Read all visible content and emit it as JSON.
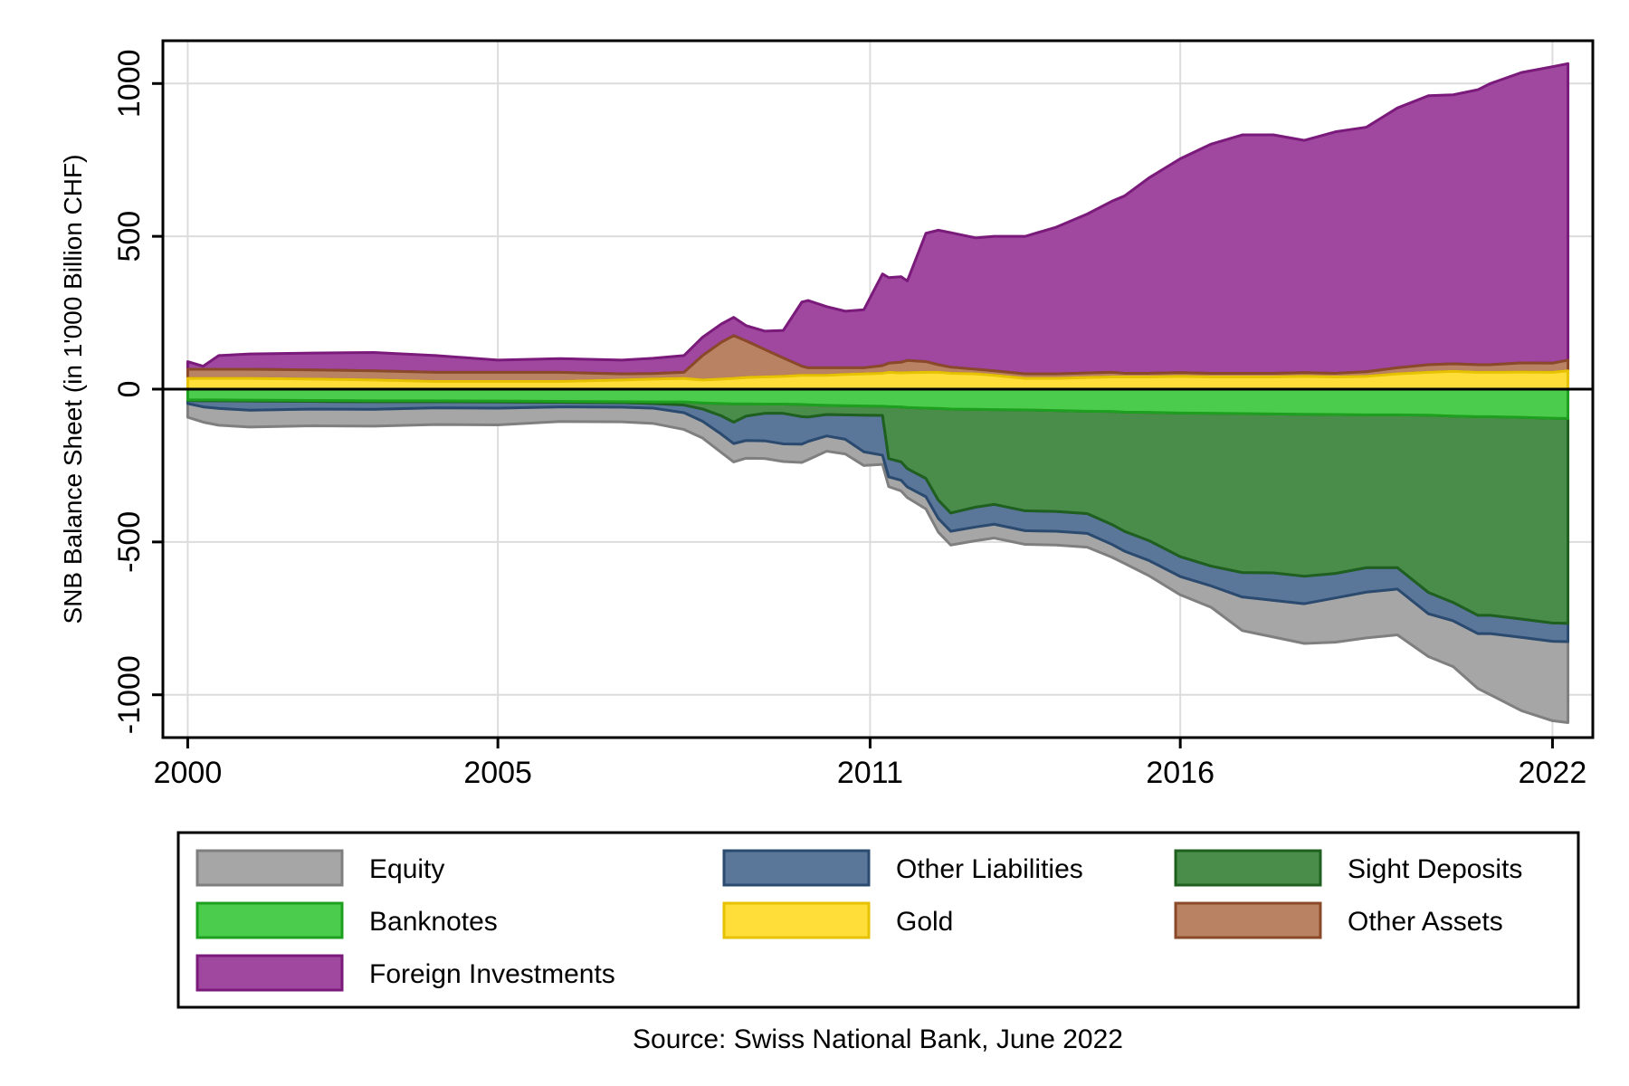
{
  "chart_data": {
    "type": "area",
    "title": "",
    "xlabel": "",
    "ylabel": "SNB Balance Sheet (in 1'000 Billion CHF)",
    "source": "Source: Swiss National Bank, June 2022",
    "x_tick_labels": [
      "2000",
      "2005",
      "2011",
      "2016",
      "2022"
    ],
    "y_tick_labels": [
      "-1000",
      "-500",
      "0",
      "500",
      "1000"
    ],
    "y_ticks": [
      -1000,
      -500,
      0,
      500,
      1000
    ],
    "x_tick_years": [
      2000,
      2005,
      2011,
      2016,
      2022
    ],
    "ylim": [
      -1140,
      1140
    ],
    "xlim": [
      1999.6,
      2022.65
    ],
    "grid": true,
    "legend_position": "bottom",
    "x": [
      2000.0,
      2000.25,
      2000.5,
      2001,
      2002,
      2003,
      2004,
      2005,
      2006,
      2007,
      2007.5,
      2008,
      2008.3,
      2008.6,
      2008.8,
      2009,
      2009.3,
      2009.6,
      2009.9,
      2010,
      2010.3,
      2010.6,
      2010.9,
      2011.2,
      2011.3,
      2011.5,
      2011.6,
      2011.9,
      2012.1,
      2012.3,
      2012.7,
      2013,
      2013.5,
      2014,
      2014.5,
      2014.9,
      2015.1,
      2015.5,
      2016,
      2016.5,
      2017,
      2017.5,
      2018,
      2018.5,
      2019,
      2019.5,
      2020,
      2020.4,
      2020.8,
      2021,
      2021.5,
      2022,
      2022.25
    ],
    "series": [
      {
        "name": "Equity",
        "side": "liability",
        "color": "#a6a6a6",
        "stroke": "#7f7f7f",
        "values": [
          45,
          50,
          55,
          55,
          55,
          55,
          55,
          55,
          48,
          48,
          50,
          55,
          55,
          60,
          60,
          58,
          58,
          58,
          60,
          60,
          50,
          48,
          45,
          30,
          32,
          35,
          35,
          40,
          45,
          45,
          45,
          45,
          45,
          45,
          45,
          42,
          40,
          50,
          60,
          70,
          110,
          120,
          130,
          145,
          150,
          150,
          140,
          150,
          180,
          200,
          240,
          260,
          265
        ]
      },
      {
        "name": "Other Liabilities",
        "side": "liability",
        "color": "#5a7799",
        "stroke": "#2b4a6f",
        "values": [
          10,
          20,
          25,
          30,
          25,
          25,
          20,
          20,
          15,
          15,
          15,
          25,
          40,
          60,
          70,
          80,
          90,
          100,
          90,
          80,
          70,
          80,
          120,
          130,
          60,
          60,
          60,
          60,
          60,
          60,
          65,
          65,
          65,
          65,
          65,
          65,
          65,
          65,
          65,
          65,
          80,
          90,
          90,
          80,
          80,
          70,
          70,
          60,
          60,
          60,
          60,
          60,
          60
        ]
      },
      {
        "name": "Sight Deposits",
        "side": "liability",
        "color": "#4a8c4a",
        "stroke": "#1f5f1f",
        "values": [
          2,
          3,
          3,
          3,
          3,
          3,
          3,
          3,
          3,
          3,
          5,
          10,
          20,
          40,
          60,
          40,
          30,
          30,
          40,
          40,
          30,
          30,
          30,
          30,
          170,
          180,
          200,
          230,
          300,
          340,
          320,
          310,
          330,
          330,
          335,
          370,
          390,
          420,
          470,
          500,
          520,
          520,
          530,
          520,
          500,
          500,
          580,
          610,
          650,
          650,
          660,
          670,
          670
        ]
      },
      {
        "name": "Banknotes",
        "side": "liability",
        "color": "#4ccc4c",
        "stroke": "#1f9f1f",
        "values": [
          35,
          35,
          35,
          36,
          37,
          38,
          38,
          39,
          40,
          41,
          42,
          42,
          45,
          47,
          48,
          48,
          49,
          49,
          50,
          51,
          53,
          54,
          55,
          56,
          57,
          58,
          60,
          62,
          63,
          65,
          66,
          67,
          68,
          70,
          72,
          73,
          75,
          76,
          78,
          79,
          80,
          81,
          82,
          83,
          84,
          84,
          85,
          88,
          90,
          90,
          92,
          95,
          96
        ]
      },
      {
        "name": "Gold",
        "side": "asset",
        "color": "#ffde3a",
        "stroke": "#e6c200",
        "values": [
          35,
          35,
          35,
          35,
          33,
          30,
          25,
          25,
          25,
          30,
          33,
          35,
          30,
          33,
          35,
          38,
          40,
          42,
          45,
          45,
          45,
          48,
          50,
          52,
          55,
          53,
          54,
          55,
          55,
          52,
          50,
          45,
          35,
          35,
          38,
          40,
          40,
          40,
          42,
          40,
          40,
          40,
          42,
          40,
          42,
          50,
          55,
          58,
          55,
          55,
          56,
          55,
          60
        ]
      },
      {
        "name": "Other Assets",
        "side": "asset",
        "color": "#b98363",
        "stroke": "#8a4a2a",
        "values": [
          30,
          30,
          30,
          30,
          30,
          30,
          30,
          30,
          30,
          20,
          18,
          20,
          80,
          120,
          140,
          120,
          90,
          60,
          30,
          25,
          25,
          22,
          20,
          25,
          30,
          35,
          40,
          35,
          25,
          20,
          15,
          15,
          15,
          15,
          15,
          15,
          12,
          12,
          12,
          12,
          12,
          12,
          12,
          12,
          15,
          20,
          25,
          25,
          25,
          25,
          30,
          30,
          35
        ]
      },
      {
        "name": "Foreign Investments",
        "side": "asset",
        "color": "#a048a0",
        "stroke": "#7a1a7a",
        "values": [
          25,
          10,
          45,
          50,
          55,
          60,
          55,
          40,
          45,
          45,
          50,
          55,
          60,
          60,
          60,
          50,
          60,
          90,
          210,
          220,
          200,
          185,
          190,
          300,
          280,
          280,
          260,
          420,
          440,
          440,
          430,
          440,
          450,
          480,
          520,
          560,
          580,
          640,
          700,
          750,
          780,
          780,
          760,
          790,
          800,
          850,
          880,
          880,
          900,
          920,
          950,
          970,
          970
        ]
      }
    ]
  }
}
